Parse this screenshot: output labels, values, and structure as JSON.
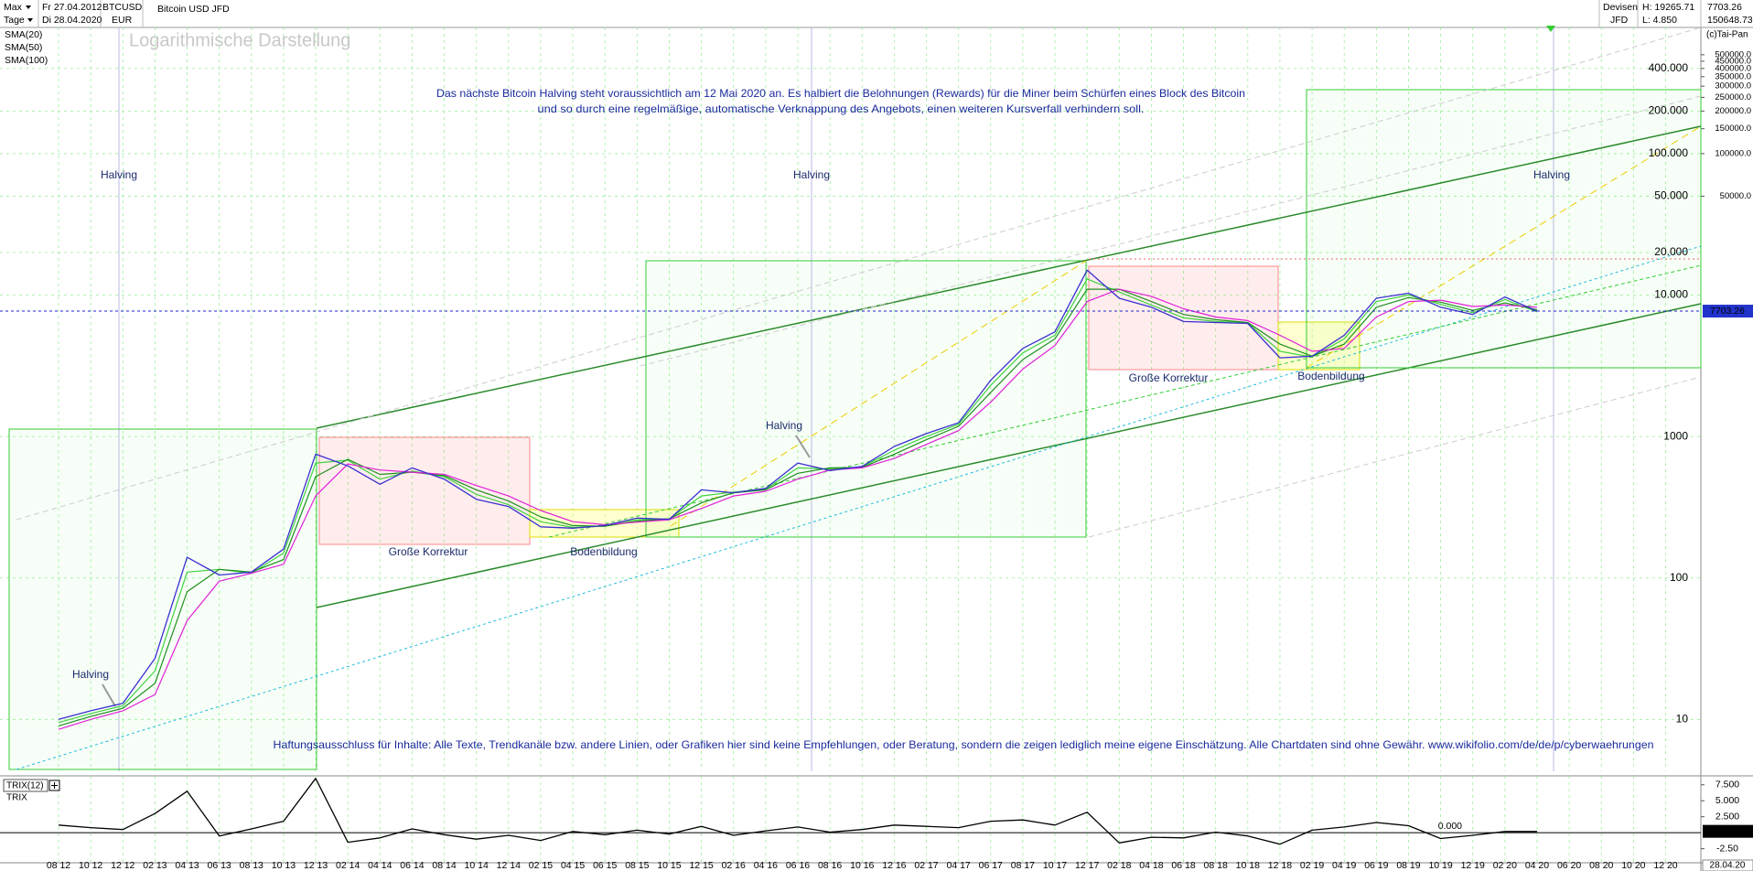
{
  "header": {
    "range": "Max",
    "interval": "Tage",
    "date_from": "Fr 27.04.2012",
    "date_to": "Di 28.04.2020",
    "symbol": "BTCUSD",
    "currency": "EUR",
    "name": "Bitcoin USD JFD",
    "market": "Devisen",
    "exchange": "JFD",
    "high": "H: 19265.71",
    "low": "L: 4.850",
    "volume": "150648.73",
    "copyright": "(c)Tai-Pan"
  },
  "chart_data": [
    {
      "type": "line",
      "title": "Logarithmische Darstellung",
      "log_scale": true,
      "grid": true,
      "note": [
        "Das nächste Bitcoin Halving steht voraussichtlich am 12 Mai 2020 an. Es halbiert die Belohnungen (Rewards) für die Miner beim Schürfen eines Block des Bitcoin",
        "und so durch eine regelmäßige, automatische Verknappung des Angebots, einen weiteren Kursverfall verhindern soll."
      ],
      "disclaimer": "Haftungsausschluss für Inhalte: Alle Texte, Trendkanäle bzw. andere Linien, oder Grafiken hier sind keine Empfehlungen, oder Beratung, sondern die zeigen lediglich meine eigene Einschätzung. Alle Chartdaten sind ohne Gewähr.  www.wikifolio.com/de/de/p/cyberwaehrungen",
      "annotations": [
        "Halving",
        "Halving",
        "Halving",
        "Halving",
        "Halving",
        "Große Korrektur",
        "Große Korrektur",
        "Bodenbildung",
        "Bodenbildung"
      ],
      "categories": [
        "08 12",
        "10 12",
        "12 12",
        "02 13",
        "04 13",
        "06 13",
        "08 13",
        "10 13",
        "12 13",
        "02 14",
        "04 14",
        "06 14",
        "08 14",
        "10 14",
        "12 14",
        "02 15",
        "04 15",
        "06 15",
        "08 15",
        "10 15",
        "12 15",
        "02 16",
        "04 16",
        "06 16",
        "08 16",
        "10 16",
        "12 16",
        "02 17",
        "04 17",
        "06 17",
        "08 17",
        "10 17",
        "12 17",
        "02 18",
        "04 18",
        "06 18",
        "08 18",
        "10 18",
        "12 18",
        "02 19",
        "04 19",
        "06 19",
        "08 19",
        "10 19",
        "12 19",
        "02 20",
        "04 20",
        "06 20",
        "08 20",
        "10 20",
        "12 20"
      ],
      "current_date_label": "28.04.20",
      "series": [
        {
          "color": "#3a2fd0",
          "values": [
            10,
            11.5,
            13,
            27,
            140,
            105,
            110,
            160,
            750,
            620,
            460,
            600,
            500,
            360,
            320,
            230,
            225,
            235,
            265,
            260,
            420,
            400,
            430,
            650,
            575,
            615,
            850,
            1050,
            1250,
            2500,
            4200,
            5500,
            15000,
            9500,
            8200,
            6500,
            6400,
            6300,
            3600,
            3700,
            5200,
            9500,
            10300,
            8200,
            7300,
            9700,
            7700,
            null,
            null,
            null,
            null
          ]
        },
        {
          "name": "SMA(20)",
          "color": "#3fd23f",
          "values": [
            9.5,
            11,
            12.5,
            22,
            110,
            115,
            108,
            150,
            650,
            680,
            500,
            570,
            520,
            390,
            330,
            250,
            228,
            232,
            258,
            262,
            380,
            405,
            425,
            600,
            590,
            610,
            800,
            1000,
            1220,
            2300,
            3900,
            5200,
            13000,
            10500,
            8500,
            6900,
            6500,
            6350,
            4000,
            3650,
            4900,
            9000,
            10000,
            8600,
            7500,
            9300,
            7600,
            null,
            null,
            null,
            null
          ]
        },
        {
          "name": "SMA(50)",
          "color": "#1f8f1f",
          "values": [
            9,
            10.5,
            12,
            18,
            80,
            115,
            110,
            135,
            520,
            690,
            540,
            560,
            530,
            420,
            350,
            270,
            235,
            232,
            252,
            262,
            340,
            400,
            420,
            550,
            600,
            605,
            750,
            950,
            1180,
            2050,
            3500,
            4900,
            11000,
            11000,
            9000,
            7300,
            6700,
            6400,
            4500,
            3700,
            4500,
            8200,
            9600,
            8900,
            7800,
            8800,
            7900,
            null,
            null,
            null,
            null
          ]
        },
        {
          "name": "SMA(100)",
          "color": "#e020d8",
          "values": [
            8.5,
            10,
            11.5,
            15,
            50,
            95,
            108,
            125,
            380,
            640,
            580,
            560,
            540,
            450,
            380,
            300,
            250,
            238,
            248,
            258,
            310,
            380,
            410,
            500,
            580,
            600,
            700,
            880,
            1100,
            1750,
            3000,
            4400,
            9000,
            11000,
            9800,
            8000,
            7000,
            6600,
            5200,
            4000,
            4200,
            7000,
            9000,
            9200,
            8300,
            8500,
            8200,
            null,
            null,
            null,
            null
          ]
        }
      ],
      "last": 7703.26,
      "ylim": [
        4.3,
        780000
      ],
      "yticks": [
        10,
        100,
        1000,
        {
          "value": 10000,
          "label": "10.000"
        },
        {
          "value": 20000,
          "label": "20.000"
        },
        {
          "value": 50000,
          "label": "50.000"
        },
        {
          "value": 100000,
          "label": "100.000"
        },
        {
          "value": 200000,
          "label": "200.000"
        },
        {
          "value": 400000,
          "label": "400.000"
        }
      ],
      "yticks_right": [
        {
          "value": 50000,
          "label": "50000.0"
        },
        {
          "value": 100000,
          "label": "100000.0"
        },
        {
          "value": 150000,
          "label": "150000.0"
        },
        {
          "value": 200000,
          "label": "200000.0"
        },
        {
          "value": 250000,
          "label": "250000.0"
        },
        {
          "value": 300000,
          "label": "300000.0"
        },
        {
          "value": 350000,
          "label": "350000.0"
        },
        {
          "value": 400000,
          "label": "400000.0"
        },
        {
          "value": 450000,
          "label": "450000.0"
        },
        {
          "value": 500000,
          "label": "500000.0"
        }
      ]
    },
    {
      "type": "line",
      "title": "TRIX(12)",
      "grid": false,
      "series": [
        {
          "name": "TRIX",
          "color": "#000000",
          "values": [
            1.2,
            0.8,
            0.5,
            3.0,
            6.5,
            -0.5,
            0.6,
            1.8,
            8.5,
            -1.5,
            -0.8,
            0.6,
            -0.3,
            -1.0,
            -0.4,
            -1.2,
            0.2,
            -0.3,
            0.4,
            -0.2,
            1.0,
            -0.4,
            0.3,
            0.9,
            0.1,
            0.5,
            1.2,
            1.0,
            0.8,
            1.8,
            2.0,
            1.2,
            3.2,
            -1.6,
            -0.7,
            -0.8,
            0.1,
            -0.5,
            -1.8,
            0.4,
            0.9,
            1.6,
            1.1,
            -0.9,
            -0.4,
            0.2,
            0.2,
            null,
            null,
            null,
            null
          ]
        }
      ],
      "last": 0.218,
      "ylim": [
        -4.7,
        8.9
      ],
      "yticks": [
        {
          "value": 7.5,
          "label": "7.500"
        },
        {
          "value": 5,
          "label": "5.000"
        },
        {
          "value": 2.5,
          "label": "2.500"
        },
        {
          "value": 0,
          "label": "0.000"
        },
        {
          "value": -2.5,
          "label": "-2.50"
        }
      ]
    }
  ]
}
